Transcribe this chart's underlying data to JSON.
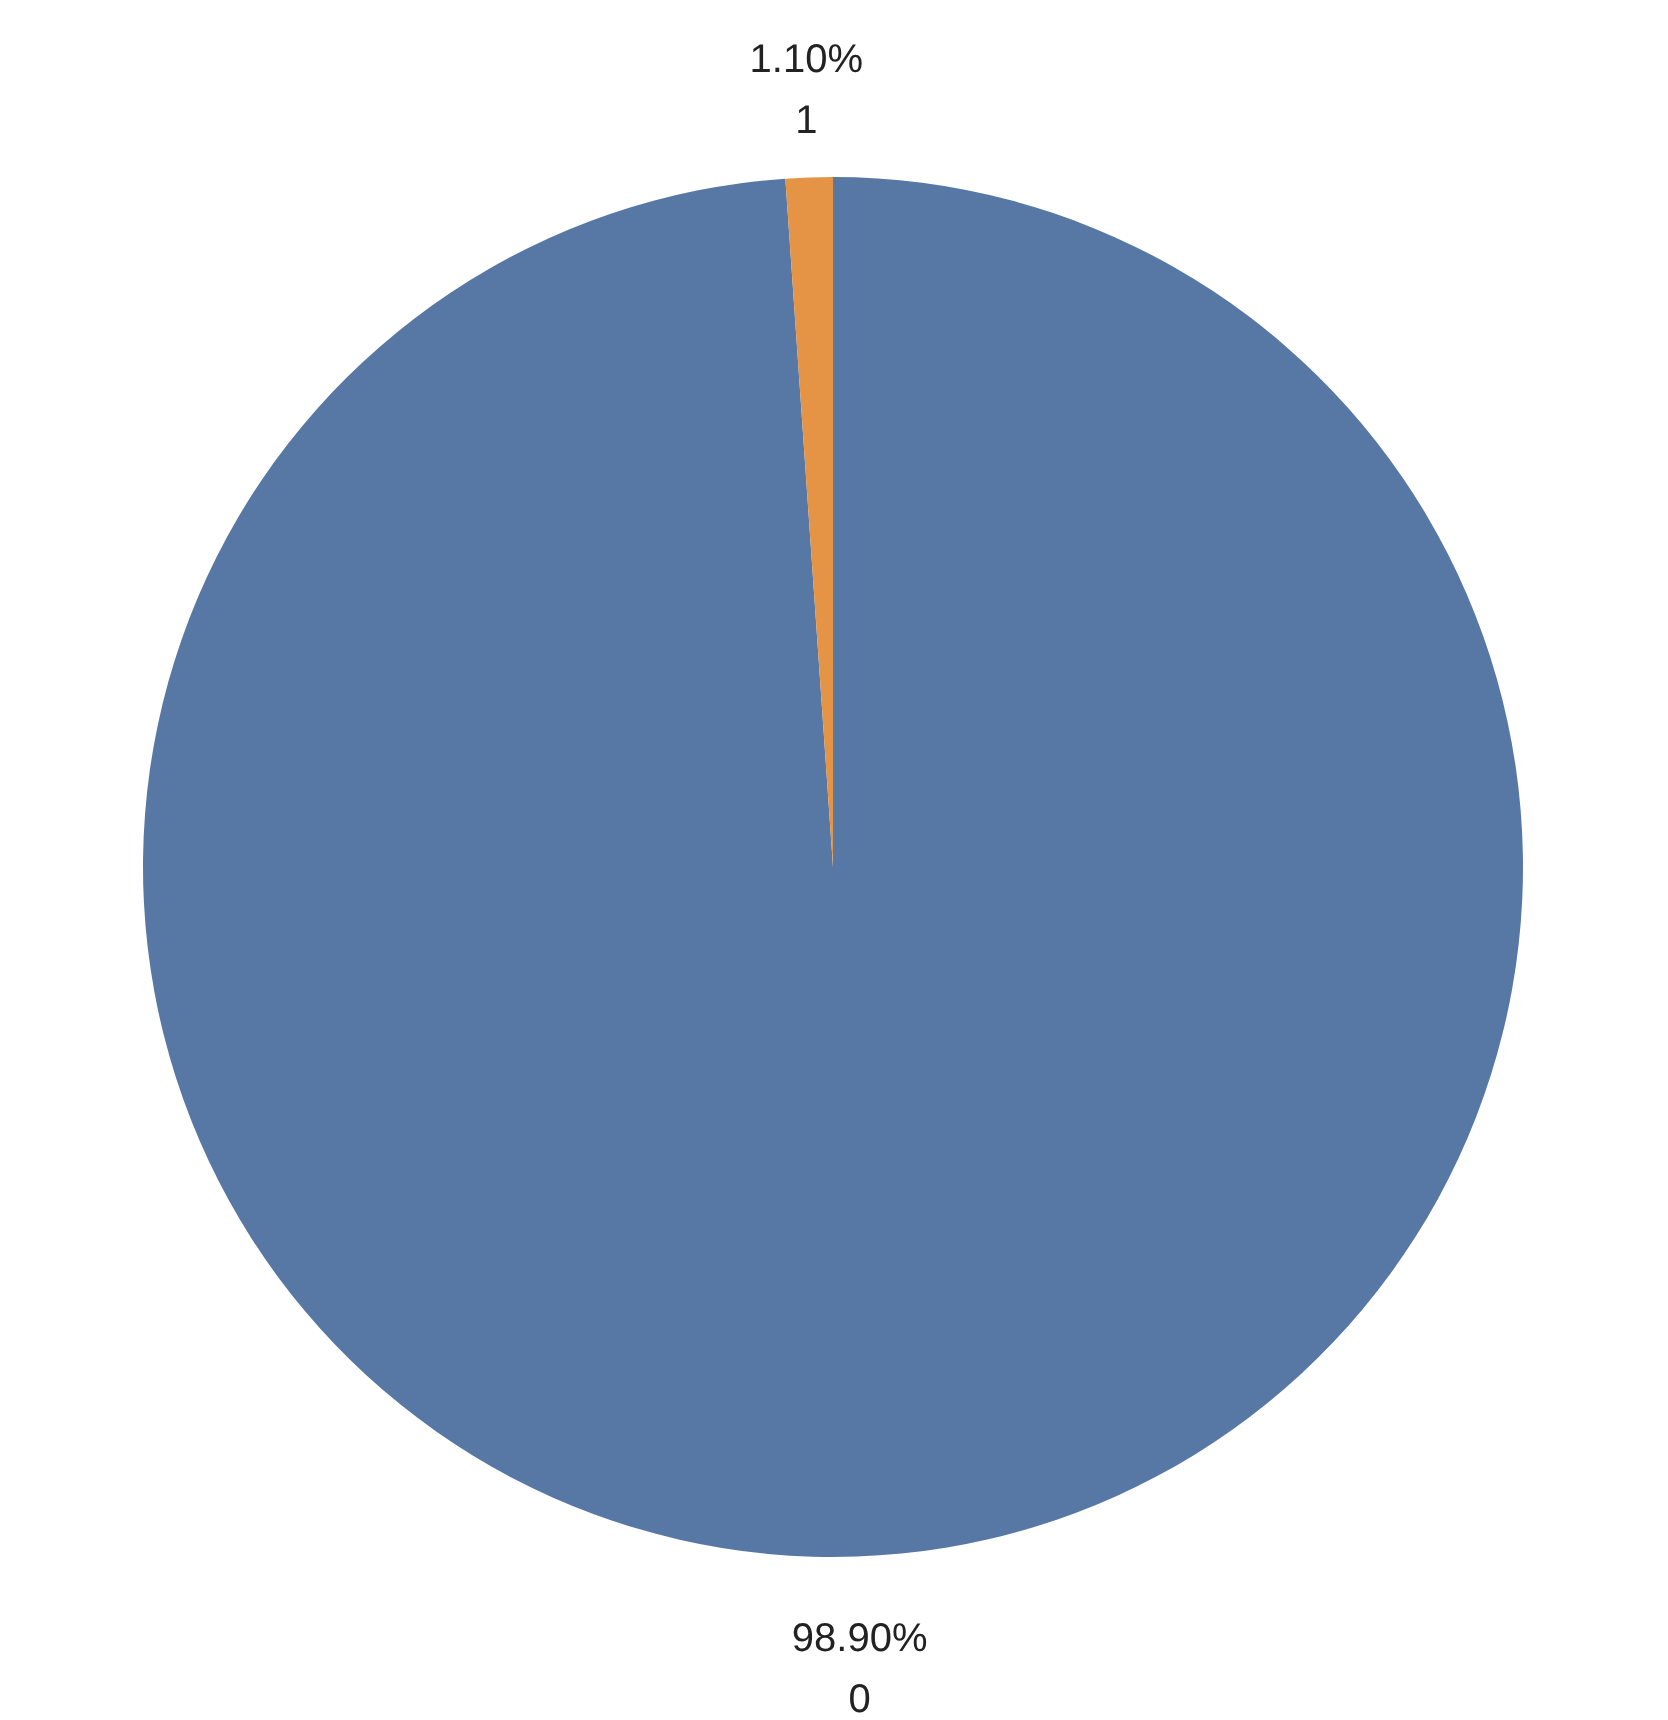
{
  "chart_data": {
    "type": "pie",
    "categories": [
      "0",
      "1"
    ],
    "values": [
      98.9,
      1.1
    ],
    "colors": [
      "#5778a4",
      "#e49444"
    ],
    "value_labels": [
      "98.90%",
      "1.10%"
    ]
  }
}
